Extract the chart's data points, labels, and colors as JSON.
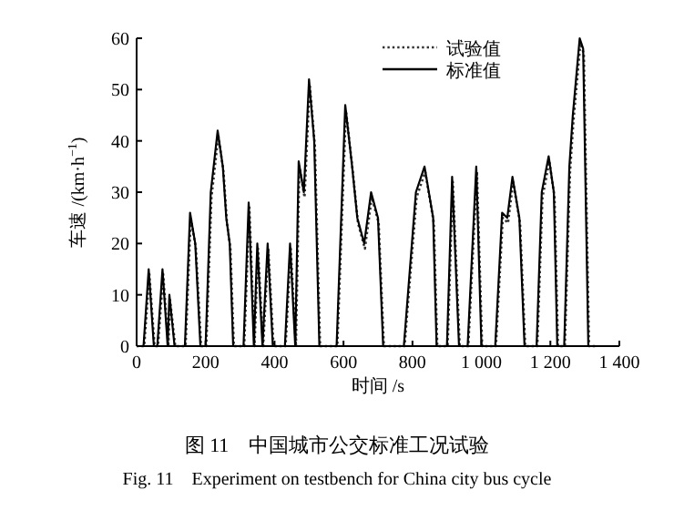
{
  "chart_data": {
    "type": "line",
    "xlabel": "时间 /s",
    "ylabel": "车速 /(km·h$^{−1}$)",
    "xlim": [
      0,
      1400
    ],
    "ylim": [
      0,
      60
    ],
    "xticks": [
      0,
      200,
      400,
      600,
      800,
      {
        "value": 1000,
        "label": "1 000"
      },
      {
        "value": 1200,
        "label": "1 200"
      },
      {
        "value": 1400,
        "label": "1 400"
      }
    ],
    "yticks": [
      0,
      10,
      20,
      30,
      40,
      50,
      60
    ],
    "legend": "top right",
    "series": [
      {
        "name": "试验值",
        "color": "#333333",
        "line_style": "dotted",
        "x": [
          0,
          22,
          37,
          52,
          62,
          77,
          92,
          97,
          112,
          142,
          157,
          172,
          187,
          202,
          217,
          237,
          252,
          262,
          272,
          282,
          312,
          327,
          342,
          352,
          367,
          382,
          397,
          432,
          447,
          462,
          472,
          487,
          502,
          517,
          532,
          582,
          607,
          627,
          642,
          662,
          682,
          702,
          717,
          777,
          812,
          837,
          862,
          872,
          902,
          917,
          937,
          962,
          987,
          1002,
          1042,
          1062,
          1077,
          1092,
          1112,
          1127,
          1162,
          1177,
          1197,
          1212,
          1222,
          1242,
          1257,
          1267,
          1287,
          1297,
          1312,
          1332
        ],
        "values": [
          0,
          0,
          14,
          0,
          0,
          14,
          0,
          9,
          0,
          0,
          25,
          19,
          0,
          0,
          29,
          41,
          34,
          24,
          19,
          0,
          0,
          27,
          0,
          19,
          0,
          19,
          0,
          0,
          19,
          0,
          35,
          29,
          51,
          39,
          0,
          0,
          46,
          34,
          24,
          19,
          29,
          24,
          0,
          0,
          29,
          34,
          24,
          0,
          0,
          32,
          0,
          0,
          34,
          0,
          0,
          25,
          24,
          32,
          24,
          0,
          0,
          29,
          36,
          29,
          0,
          0,
          34,
          44,
          59,
          57,
          0,
          0
        ]
      },
      {
        "name": "标准值",
        "color": "#000000",
        "line_style": "solid",
        "x": [
          0,
          20,
          35,
          50,
          60,
          75,
          90,
          95,
          110,
          140,
          155,
          170,
          185,
          200,
          215,
          235,
          250,
          260,
          270,
          280,
          310,
          325,
          340,
          350,
          365,
          380,
          395,
          430,
          445,
          460,
          470,
          485,
          500,
          515,
          530,
          580,
          605,
          625,
          640,
          660,
          680,
          700,
          715,
          775,
          810,
          835,
          860,
          870,
          900,
          915,
          935,
          960,
          985,
          1000,
          1040,
          1060,
          1075,
          1090,
          1110,
          1125,
          1160,
          1175,
          1195,
          1210,
          1220,
          1240,
          1255,
          1265,
          1285,
          1295,
          1310,
          1330
        ],
        "values": [
          0,
          0,
          15,
          0,
          0,
          15,
          0,
          10,
          0,
          0,
          26,
          20,
          0,
          0,
          30,
          42,
          35,
          25,
          20,
          0,
          0,
          28,
          0,
          20,
          0,
          20,
          0,
          0,
          20,
          0,
          36,
          30,
          52,
          40,
          0,
          0,
          47,
          35,
          25,
          20,
          30,
          25,
          0,
          0,
          30,
          35,
          25,
          0,
          0,
          33,
          0,
          0,
          35,
          0,
          0,
          26,
          25,
          33,
          25,
          0,
          0,
          30,
          37,
          30,
          0,
          0,
          35,
          45,
          60,
          58,
          0,
          0
        ]
      }
    ],
    "annotations": [
      "图 11　中国城市公交标准工况试验",
      "Fig. 11　Experiment on testbench for China city bus cycle"
    ]
  }
}
